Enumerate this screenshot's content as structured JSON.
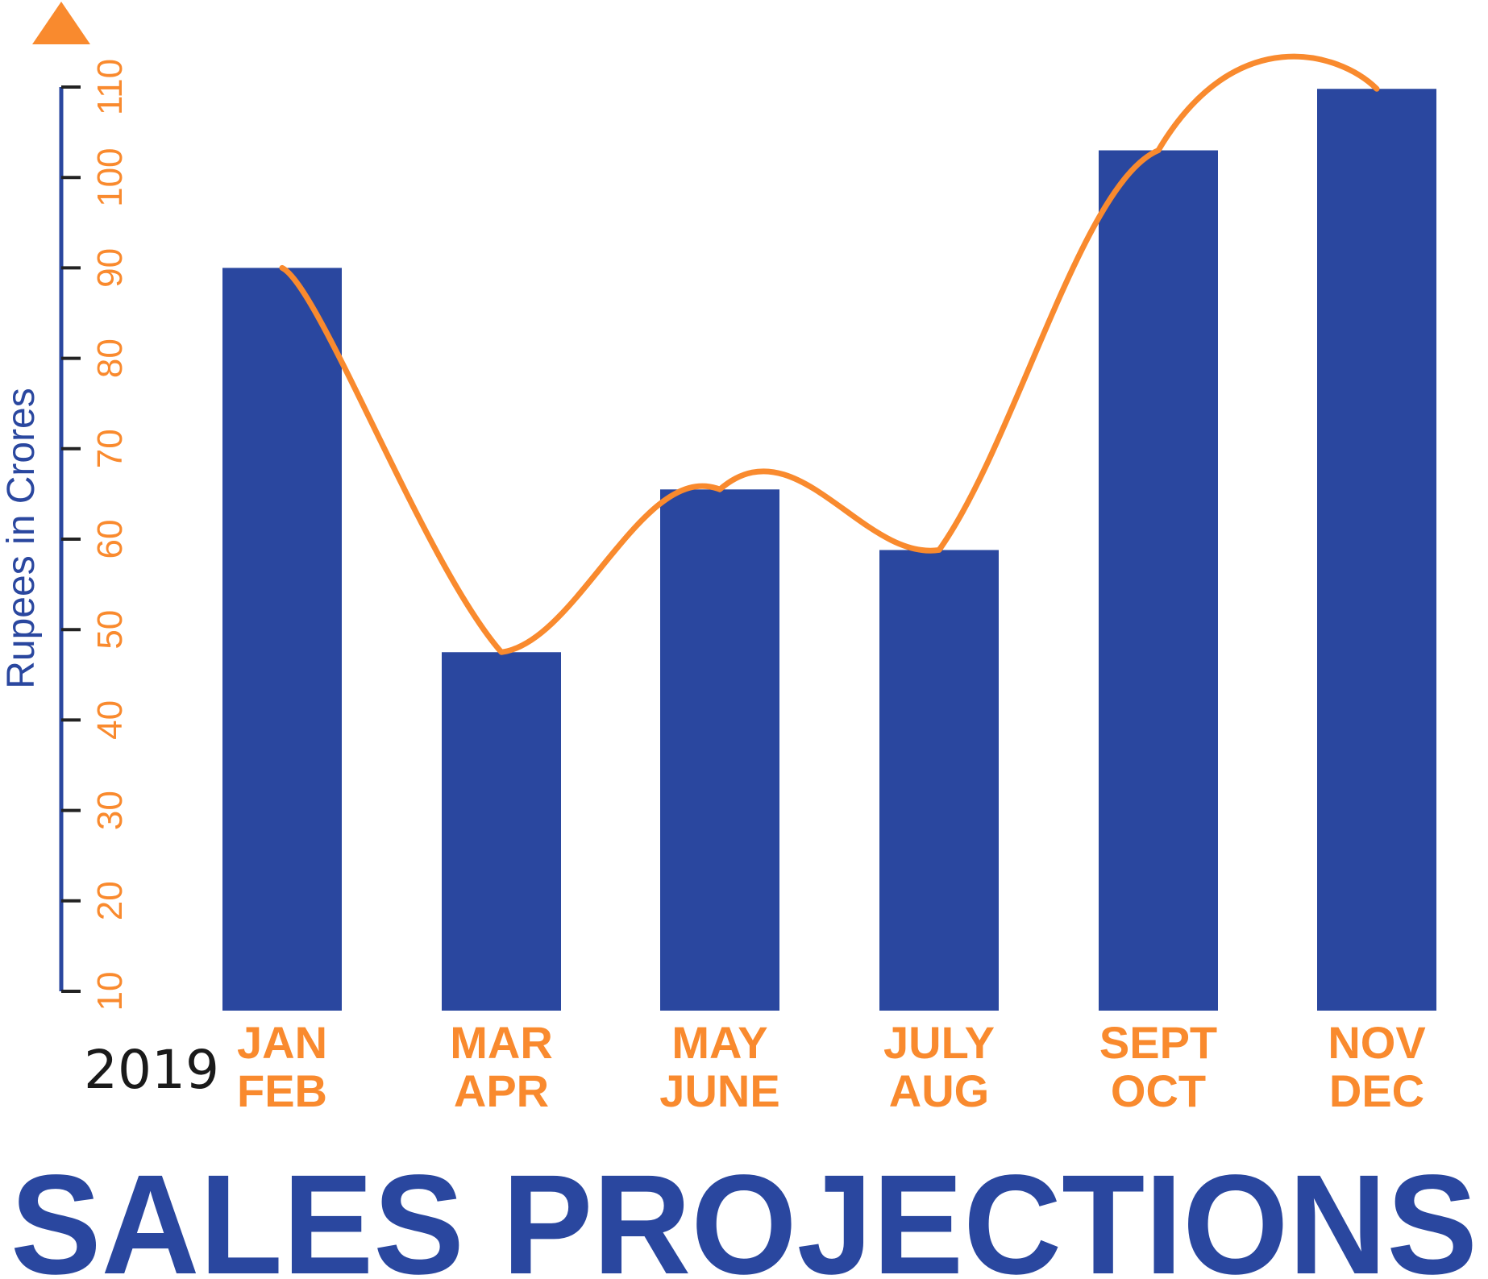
{
  "colors": {
    "bar": "#2a479f",
    "line": "#f98a2e",
    "axis": "#2a479f",
    "tick": "#222222",
    "year": "#1a1a1a"
  },
  "chart_data": {
    "type": "bar",
    "title": "SALES PROJECTIONS",
    "year": "2019",
    "ylabel": "Rupees in Crores",
    "ylim": [
      10,
      110
    ],
    "yticks": [
      "10",
      "20",
      "30",
      "40",
      "50",
      "60",
      "70",
      "80",
      "90",
      "100",
      "110"
    ],
    "categories": [
      [
        "JAN",
        "FEB"
      ],
      [
        "MAR",
        "APR"
      ],
      [
        "MAY",
        "JUNE"
      ],
      [
        "JULY",
        "AUG"
      ],
      [
        "SEPT",
        "OCT"
      ],
      [
        "NOV",
        "DEC"
      ]
    ],
    "values": [
      90,
      47.5,
      65.5,
      58.8,
      103,
      109.8
    ],
    "trend_line": {
      "values": [
        90,
        47.5,
        65.5,
        58.8,
        103,
        109.8
      ],
      "style": "smooth curve"
    },
    "grid": false,
    "legend": "none"
  }
}
